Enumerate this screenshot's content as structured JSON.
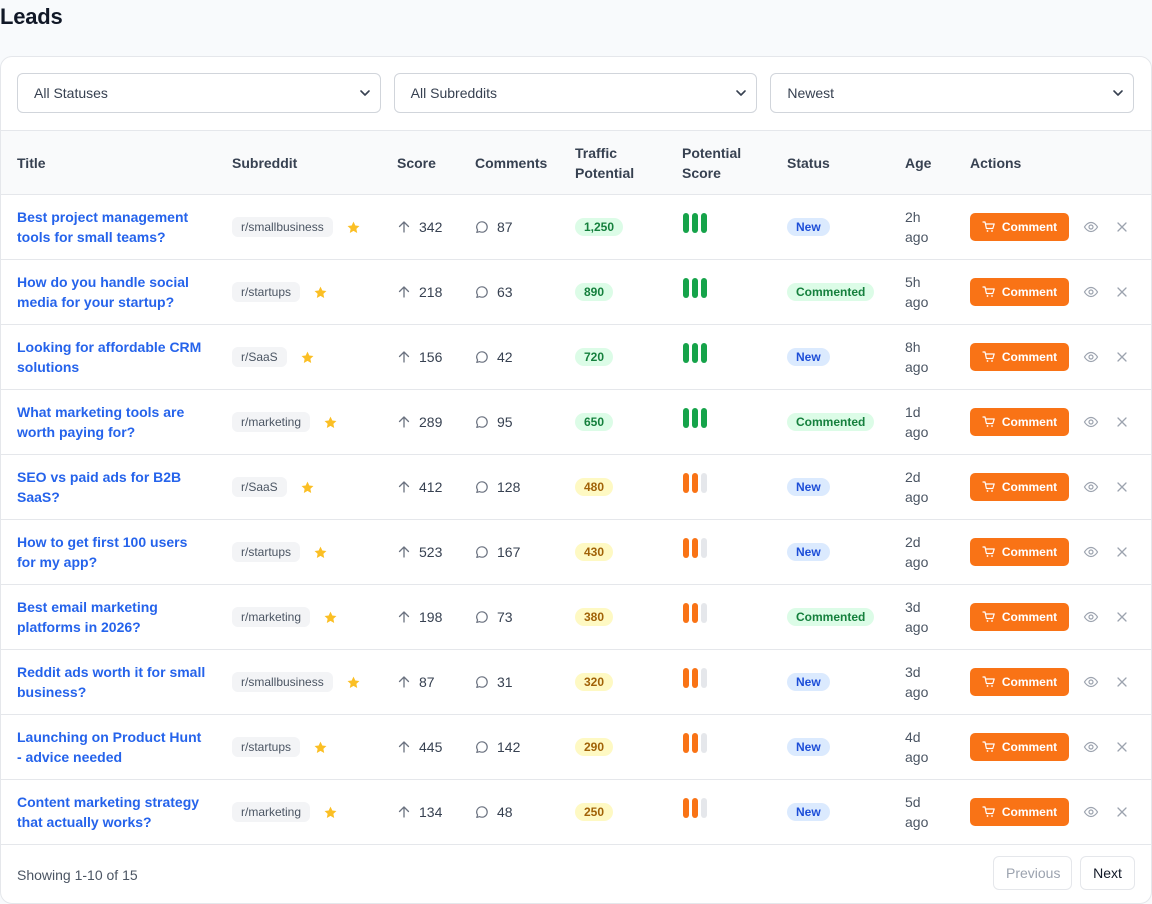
{
  "page": {
    "title": "Leads"
  },
  "filters": {
    "status": "All Statuses",
    "subreddit": "All Subreddits",
    "sort": "Newest"
  },
  "columns": {
    "title": "Title",
    "subreddit": "Subreddit",
    "score": "Score",
    "comments": "Comments",
    "traffic_potential": "Traffic Potential",
    "potential_score": "Potential Score",
    "status": "Status",
    "age": "Age",
    "actions": "Actions"
  },
  "rows": [
    {
      "title": "Best project management tools for small teams?",
      "subreddit": "r/smallbusiness",
      "starred": true,
      "score": "342",
      "comments": "87",
      "traffic": "1,250",
      "traffic_level": "high",
      "potential_score": 3,
      "status": "New",
      "age": "2h ago",
      "action": "Comment"
    },
    {
      "title": "How do you handle social media for your startup?",
      "subreddit": "r/startups",
      "starred": true,
      "score": "218",
      "comments": "63",
      "traffic": "890",
      "traffic_level": "high",
      "potential_score": 3,
      "status": "Commented",
      "age": "5h ago",
      "action": "Comment"
    },
    {
      "title": "Looking for affordable CRM solutions",
      "subreddit": "r/SaaS",
      "starred": true,
      "score": "156",
      "comments": "42",
      "traffic": "720",
      "traffic_level": "high",
      "potential_score": 3,
      "status": "New",
      "age": "8h ago",
      "action": "Comment"
    },
    {
      "title": "What marketing tools are worth paying for?",
      "subreddit": "r/marketing",
      "starred": true,
      "score": "289",
      "comments": "95",
      "traffic": "650",
      "traffic_level": "high",
      "potential_score": 3,
      "status": "Commented",
      "age": "1d ago",
      "action": "Comment"
    },
    {
      "title": "SEO vs paid ads for B2B SaaS?",
      "subreddit": "r/SaaS",
      "starred": true,
      "score": "412",
      "comments": "128",
      "traffic": "480",
      "traffic_level": "medium",
      "potential_score": 2,
      "status": "New",
      "age": "2d ago",
      "action": "Comment"
    },
    {
      "title": "How to get first 100 users for my app?",
      "subreddit": "r/startups",
      "starred": true,
      "score": "523",
      "comments": "167",
      "traffic": "430",
      "traffic_level": "medium",
      "potential_score": 2,
      "status": "New",
      "age": "2d ago",
      "action": "Comment"
    },
    {
      "title": "Best email marketing platforms in 2026?",
      "subreddit": "r/marketing",
      "starred": true,
      "score": "198",
      "comments": "73",
      "traffic": "380",
      "traffic_level": "medium",
      "potential_score": 2,
      "status": "Commented",
      "age": "3d ago",
      "action": "Comment"
    },
    {
      "title": "Reddit ads worth it for small business?",
      "subreddit": "r/smallbusiness",
      "starred": true,
      "score": "87",
      "comments": "31",
      "traffic": "320",
      "traffic_level": "medium",
      "potential_score": 2,
      "status": "New",
      "age": "3d ago",
      "action": "Comment"
    },
    {
      "title": "Launching on Product Hunt - advice needed",
      "subreddit": "r/startups",
      "starred": true,
      "score": "445",
      "comments": "142",
      "traffic": "290",
      "traffic_level": "medium",
      "potential_score": 2,
      "status": "New",
      "age": "4d ago",
      "action": "Comment"
    },
    {
      "title": "Content marketing strategy that actually works?",
      "subreddit": "r/marketing",
      "starred": true,
      "score": "134",
      "comments": "48",
      "traffic": "250",
      "traffic_level": "medium",
      "potential_score": 2,
      "status": "New",
      "age": "5d ago",
      "action": "Comment"
    }
  ],
  "footer": {
    "showing": "Showing 1-10 of 15",
    "previous": "Previous",
    "next": "Next"
  },
  "colors": {
    "accent": "#f97316",
    "link": "#2563eb",
    "score_high": "#16a34a",
    "score_medium": "#f97316",
    "score_empty": "#e5e7eb"
  },
  "icons": {
    "select": "chevron-down-icon",
    "star": "star-icon",
    "score": "arrow-up-icon",
    "comments": "chat-bubble-icon",
    "action": "cart-icon",
    "view": "eye-icon",
    "dismiss": "close-icon"
  }
}
